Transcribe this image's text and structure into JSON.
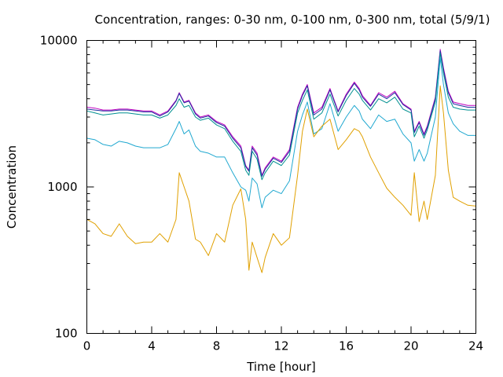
{
  "chart_data": {
    "type": "line",
    "title": "Concentration, ranges: 0-30 nm, 0-100 nm, 0-300 nm, total (5/9/1)",
    "xlabel": "Time [hour]",
    "ylabel": "Concentration",
    "xlim": [
      0,
      24
    ],
    "ylim": [
      100,
      10000
    ],
    "yscale": "log",
    "grid": false,
    "legend": "none",
    "x_ticks": [
      "0",
      "4",
      "8",
      "12",
      "16",
      "20",
      "24"
    ],
    "x_tick_values": [
      0,
      4,
      8,
      12,
      16,
      20,
      24
    ],
    "y_ticks": [
      "100",
      "1000",
      "10000"
    ],
    "y_tick_values": [
      100,
      1000,
      10000
    ],
    "x": [
      0,
      0.5,
      1,
      1.5,
      2,
      2.5,
      3,
      3.5,
      4,
      4.5,
      5,
      5.5,
      5.7,
      6,
      6.3,
      6.7,
      7,
      7.5,
      8,
      8.5,
      9,
      9.5,
      9.8,
      10,
      10.2,
      10.5,
      10.8,
      11,
      11.5,
      12,
      12.5,
      13,
      13.3,
      13.6,
      14,
      14.5,
      15,
      15.5,
      16,
      16.5,
      16.8,
      17,
      17.5,
      18,
      18.5,
      19,
      19.5,
      20,
      20.2,
      20.5,
      20.8,
      21,
      21.5,
      21.8,
      22,
      22.3,
      22.6,
      23,
      23.5,
      24
    ],
    "series": [
      {
        "color": "#c000c0",
        "values": [
          3500,
          3450,
          3350,
          3350,
          3400,
          3400,
          3350,
          3300,
          3300,
          3100,
          3300,
          3900,
          4400,
          3800,
          3900,
          3200,
          3000,
          3100,
          2800,
          2650,
          2200,
          1900,
          1400,
          1300,
          1900,
          1700,
          1200,
          1350,
          1600,
          1500,
          1800,
          3500,
          4300,
          5000,
          3200,
          3500,
          4700,
          3300,
          4300,
          5200,
          4700,
          4200,
          3600,
          4400,
          4100,
          4500,
          3700,
          3400,
          2400,
          2800,
          2300,
          2600,
          4100,
          8700,
          6500,
          4500,
          3800,
          3700,
          3600,
          3600
        ]
      },
      {
        "color": "#2030a0",
        "values": [
          3400,
          3350,
          3300,
          3300,
          3350,
          3350,
          3300,
          3250,
          3250,
          3050,
          3250,
          3850,
          4350,
          3750,
          3850,
          3150,
          2950,
          3050,
          2750,
          2600,
          2150,
          1850,
          1380,
          1280,
          1850,
          1650,
          1180,
          1320,
          1570,
          1470,
          1750,
          3400,
          4200,
          4900,
          3100,
          3400,
          4600,
          3250,
          4200,
          5100,
          4600,
          4100,
          3550,
          4300,
          4000,
          4400,
          3650,
          3350,
          2350,
          2750,
          2250,
          2550,
          4000,
          8500,
          6300,
          4400,
          3700,
          3600,
          3500,
          3500
        ]
      },
      {
        "color": "#009090",
        "values": [
          3300,
          3200,
          3100,
          3150,
          3200,
          3200,
          3150,
          3100,
          3100,
          2950,
          3100,
          3600,
          4000,
          3500,
          3600,
          3000,
          2850,
          2950,
          2650,
          2500,
          2050,
          1750,
          1300,
          1200,
          1750,
          1550,
          1120,
          1250,
          1500,
          1400,
          1650,
          3200,
          3900,
          4600,
          2900,
          3200,
          4300,
          3050,
          3900,
          4700,
          4300,
          3900,
          3350,
          4000,
          3750,
          4100,
          3400,
          3200,
          2200,
          2600,
          2150,
          2450,
          3800,
          8200,
          6000,
          4100,
          3500,
          3400,
          3350,
          3350
        ]
      },
      {
        "color": "#20a8d0",
        "values": [
          2150,
          2100,
          1950,
          1900,
          2050,
          2000,
          1900,
          1850,
          1850,
          1850,
          1950,
          2500,
          2800,
          2300,
          2450,
          1900,
          1750,
          1700,
          1600,
          1600,
          1250,
          1000,
          950,
          800,
          1150,
          1050,
          720,
          850,
          950,
          900,
          1100,
          2400,
          3100,
          3800,
          2300,
          2500,
          3700,
          2400,
          3000,
          3600,
          3300,
          2900,
          2500,
          3100,
          2800,
          2900,
          2300,
          2000,
          1500,
          1800,
          1500,
          1700,
          3000,
          7600,
          5000,
          3200,
          2700,
          2400,
          2250,
          2250
        ]
      },
      {
        "color": "#e0a000",
        "values": [
          600,
          560,
          480,
          460,
          560,
          460,
          410,
          420,
          420,
          480,
          420,
          600,
          1250,
          1000,
          800,
          440,
          420,
          340,
          480,
          420,
          750,
          970,
          600,
          270,
          420,
          330,
          260,
          330,
          480,
          400,
          450,
          1200,
          2400,
          3400,
          2200,
          2600,
          2900,
          1800,
          2100,
          2500,
          2400,
          2200,
          1600,
          1250,
          980,
          850,
          750,
          640,
          1250,
          580,
          800,
          600,
          1200,
          4900,
          3200,
          1300,
          850,
          800,
          750,
          740
        ]
      }
    ]
  }
}
